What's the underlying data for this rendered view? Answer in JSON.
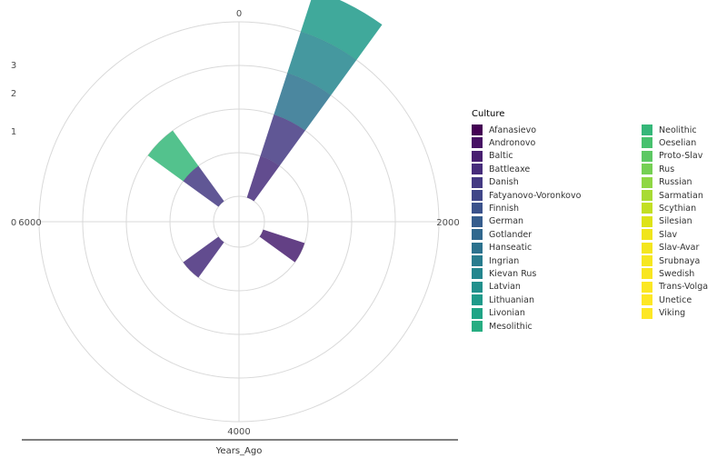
{
  "chart_data": {
    "type": "bar",
    "coord": "polar",
    "xlabel": "Years_Ago",
    "x_ticks": [
      0,
      2000,
      4000,
      6000
    ],
    "x_range": [
      0,
      8000
    ],
    "y_ticks": [
      0,
      1,
      2,
      3
    ],
    "y_range": [
      0,
      4
    ],
    "grid": true,
    "legend_title": "Culture",
    "legend_position": "right",
    "bar_width_years": 400,
    "series": [
      {
        "name": "Afanasievo",
        "color": "#440154",
        "stacks": []
      },
      {
        "name": "Andronovo",
        "color": "#471164",
        "stacks": []
      },
      {
        "name": "Baltic",
        "color": "#481f70",
        "stacks": [
          [
            2600,
            1
          ]
        ]
      },
      {
        "name": "Battleaxe",
        "color": "#472d7b",
        "stacks": [
          [
            5000,
            1
          ],
          [
            600,
            1
          ]
        ]
      },
      {
        "name": "Danish",
        "color": "#443a83",
        "stacks": [
          [
            600,
            1
          ],
          [
            7000,
            1
          ]
        ]
      },
      {
        "name": "Fatyanovo-Voronkovo",
        "color": "#404688",
        "stacks": []
      },
      {
        "name": "Finnish",
        "color": "#3b528b",
        "stacks": []
      },
      {
        "name": "German",
        "color": "#365d8d",
        "stacks": []
      },
      {
        "name": "Gotlander",
        "color": "#31688e",
        "stacks": []
      },
      {
        "name": "Hanseatic",
        "color": "#2c728e",
        "stacks": [
          [
            600,
            1
          ]
        ]
      },
      {
        "name": "Ingrian",
        "color": "#287c8e",
        "stacks": []
      },
      {
        "name": "Kievan Rus",
        "color": "#24868e",
        "stacks": [
          [
            600,
            1
          ]
        ]
      },
      {
        "name": "Latvian",
        "color": "#21908c",
        "stacks": []
      },
      {
        "name": "Lithuanian",
        "color": "#1f9a8a",
        "stacks": [
          [
            600,
            1
          ]
        ]
      },
      {
        "name": "Livonian",
        "color": "#20a486",
        "stacks": []
      },
      {
        "name": "Mesolithic",
        "color": "#27ad81",
        "stacks": []
      },
      {
        "name": "Neolithic",
        "color": "#35b779",
        "stacks": [
          [
            7000,
            1
          ]
        ]
      },
      {
        "name": "Oeselian",
        "color": "#47c16e",
        "stacks": []
      },
      {
        "name": "Proto-Slav",
        "color": "#5dc863",
        "stacks": []
      },
      {
        "name": "Rus",
        "color": "#75d054",
        "stacks": []
      },
      {
        "name": "Russian",
        "color": "#8fd744",
        "stacks": []
      },
      {
        "name": "Sarmatian",
        "color": "#a8db34",
        "stacks": []
      },
      {
        "name": "Scythian",
        "color": "#c2df23",
        "stacks": []
      },
      {
        "name": "Silesian",
        "color": "#dde318",
        "stacks": []
      },
      {
        "name": "Slav",
        "color": "#f0e51c",
        "stacks": []
      },
      {
        "name": "Slav-Avar",
        "color": "#f4e61e",
        "stacks": []
      },
      {
        "name": "Srubnaya",
        "color": "#f6e720",
        "stacks": []
      },
      {
        "name": "Swedish",
        "color": "#f8e621",
        "stacks": []
      },
      {
        "name": "Trans-Volga",
        "color": "#fbe723",
        "stacks": []
      },
      {
        "name": "Unetice",
        "color": "#fde725",
        "stacks": []
      },
      {
        "name": "Viking",
        "color": "#fde725",
        "stacks": []
      }
    ]
  }
}
